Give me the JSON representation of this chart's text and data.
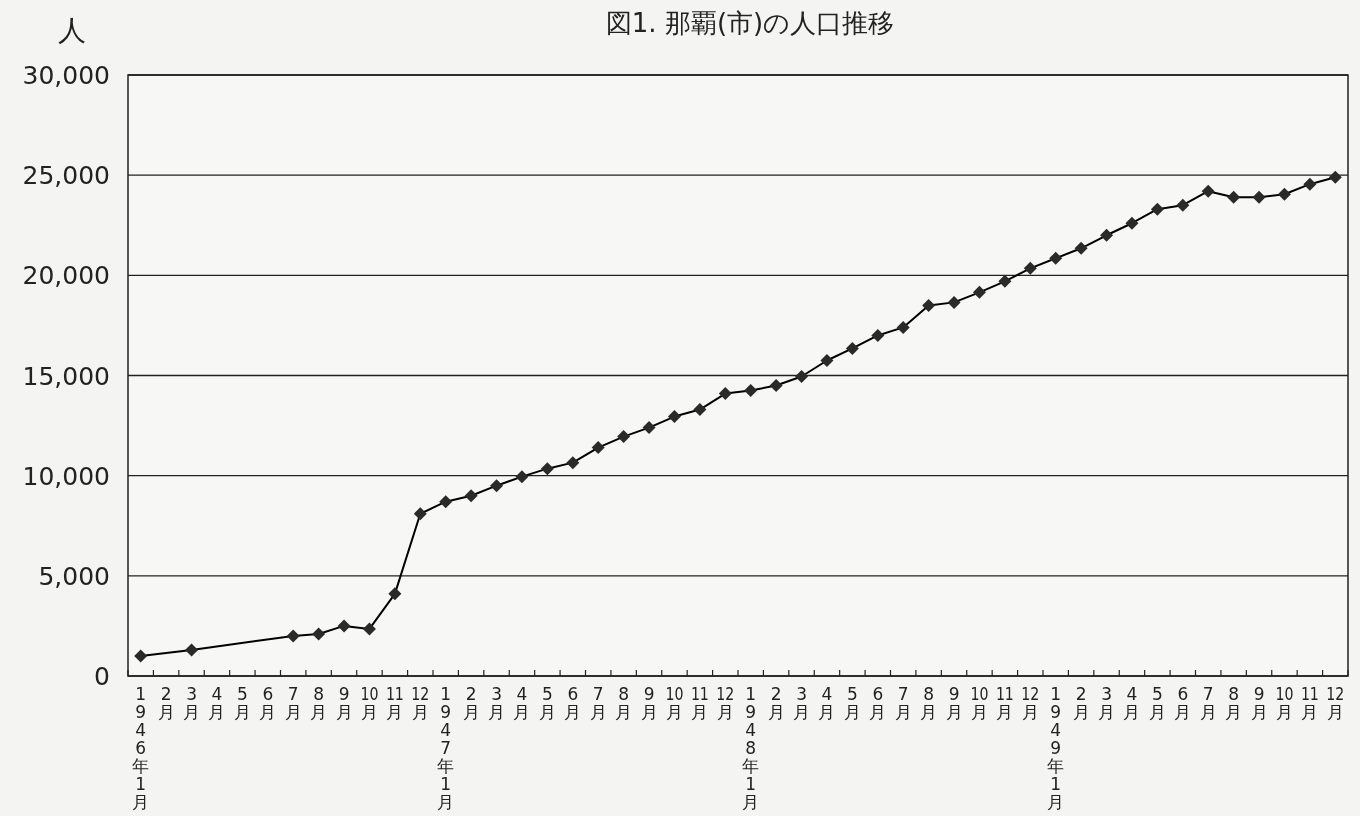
{
  "chart_data": {
    "type": "line",
    "title": "図1. 那覇(市)の人口推移",
    "ylabel": "人",
    "categories": [
      "1946年1月",
      "2月",
      "3月",
      "4月",
      "5月",
      "6月",
      "7月",
      "8月",
      "9月",
      "10月",
      "11月",
      "12月",
      "1947年1月",
      "2月",
      "3月",
      "4月",
      "5月",
      "6月",
      "7月",
      "8月",
      "9月",
      "10月",
      "11月",
      "12月",
      "1948年1月",
      "2月",
      "3月",
      "4月",
      "5月",
      "6月",
      "7月",
      "8月",
      "9月",
      "10月",
      "11月",
      "12月",
      "1949年1月",
      "2月",
      "3月",
      "4月",
      "5月",
      "6月",
      "7月",
      "8月",
      "9月",
      "10月",
      "11月",
      "12月"
    ],
    "values": [
      1000,
      null,
      1300,
      null,
      null,
      null,
      2000,
      2100,
      2500,
      2350,
      4100,
      8100,
      8700,
      9000,
      9500,
      9950,
      10350,
      10650,
      11400,
      11950,
      12400,
      12950,
      13300,
      14100,
      14250,
      14500,
      14950,
      15750,
      16350,
      17000,
      17400,
      18500,
      18650,
      19150,
      19700,
      20350,
      20850,
      21350,
      22000,
      22600,
      23300,
      23500,
      24200,
      23900,
      23900,
      24050,
      24550,
      24900
    ],
    "color": "#000000",
    "ylim": [
      0,
      30000
    ],
    "yticks": [
      0,
      {
        "value": 5000,
        "label": "5,000"
      },
      {
        "value": 10000,
        "label": "10,000"
      },
      {
        "value": 15000,
        "label": "15,000"
      },
      {
        "value": 20000,
        "label": "20,000"
      },
      {
        "value": 25000,
        "label": "25,000"
      },
      {
        "value": 30000,
        "label": "30,000"
      }
    ],
    "grid": "y",
    "marker": "diamond",
    "line_style": "solid"
  }
}
